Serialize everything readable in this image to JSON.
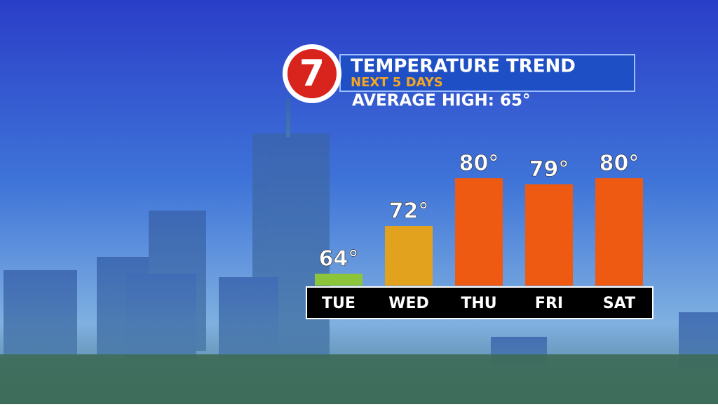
{
  "logo_text": "7",
  "chart_data": {
    "type": "bar",
    "title": "TEMPERATURE TREND",
    "subtitle": "NEXT 5 DAYS",
    "annotation": "AVERAGE HIGH: 65°",
    "categories": [
      "TUE",
      "WED",
      "THU",
      "FRI",
      "SAT"
    ],
    "values": [
      64,
      72,
      80,
      79,
      80
    ],
    "value_labels": [
      "64°",
      "72°",
      "80°",
      "79°",
      "80°"
    ],
    "colors": [
      "#8cc43a",
      "#e2a21e",
      "#ee5a12",
      "#ee5a12",
      "#ee5a12"
    ],
    "ylim": [
      62,
      81
    ]
  }
}
